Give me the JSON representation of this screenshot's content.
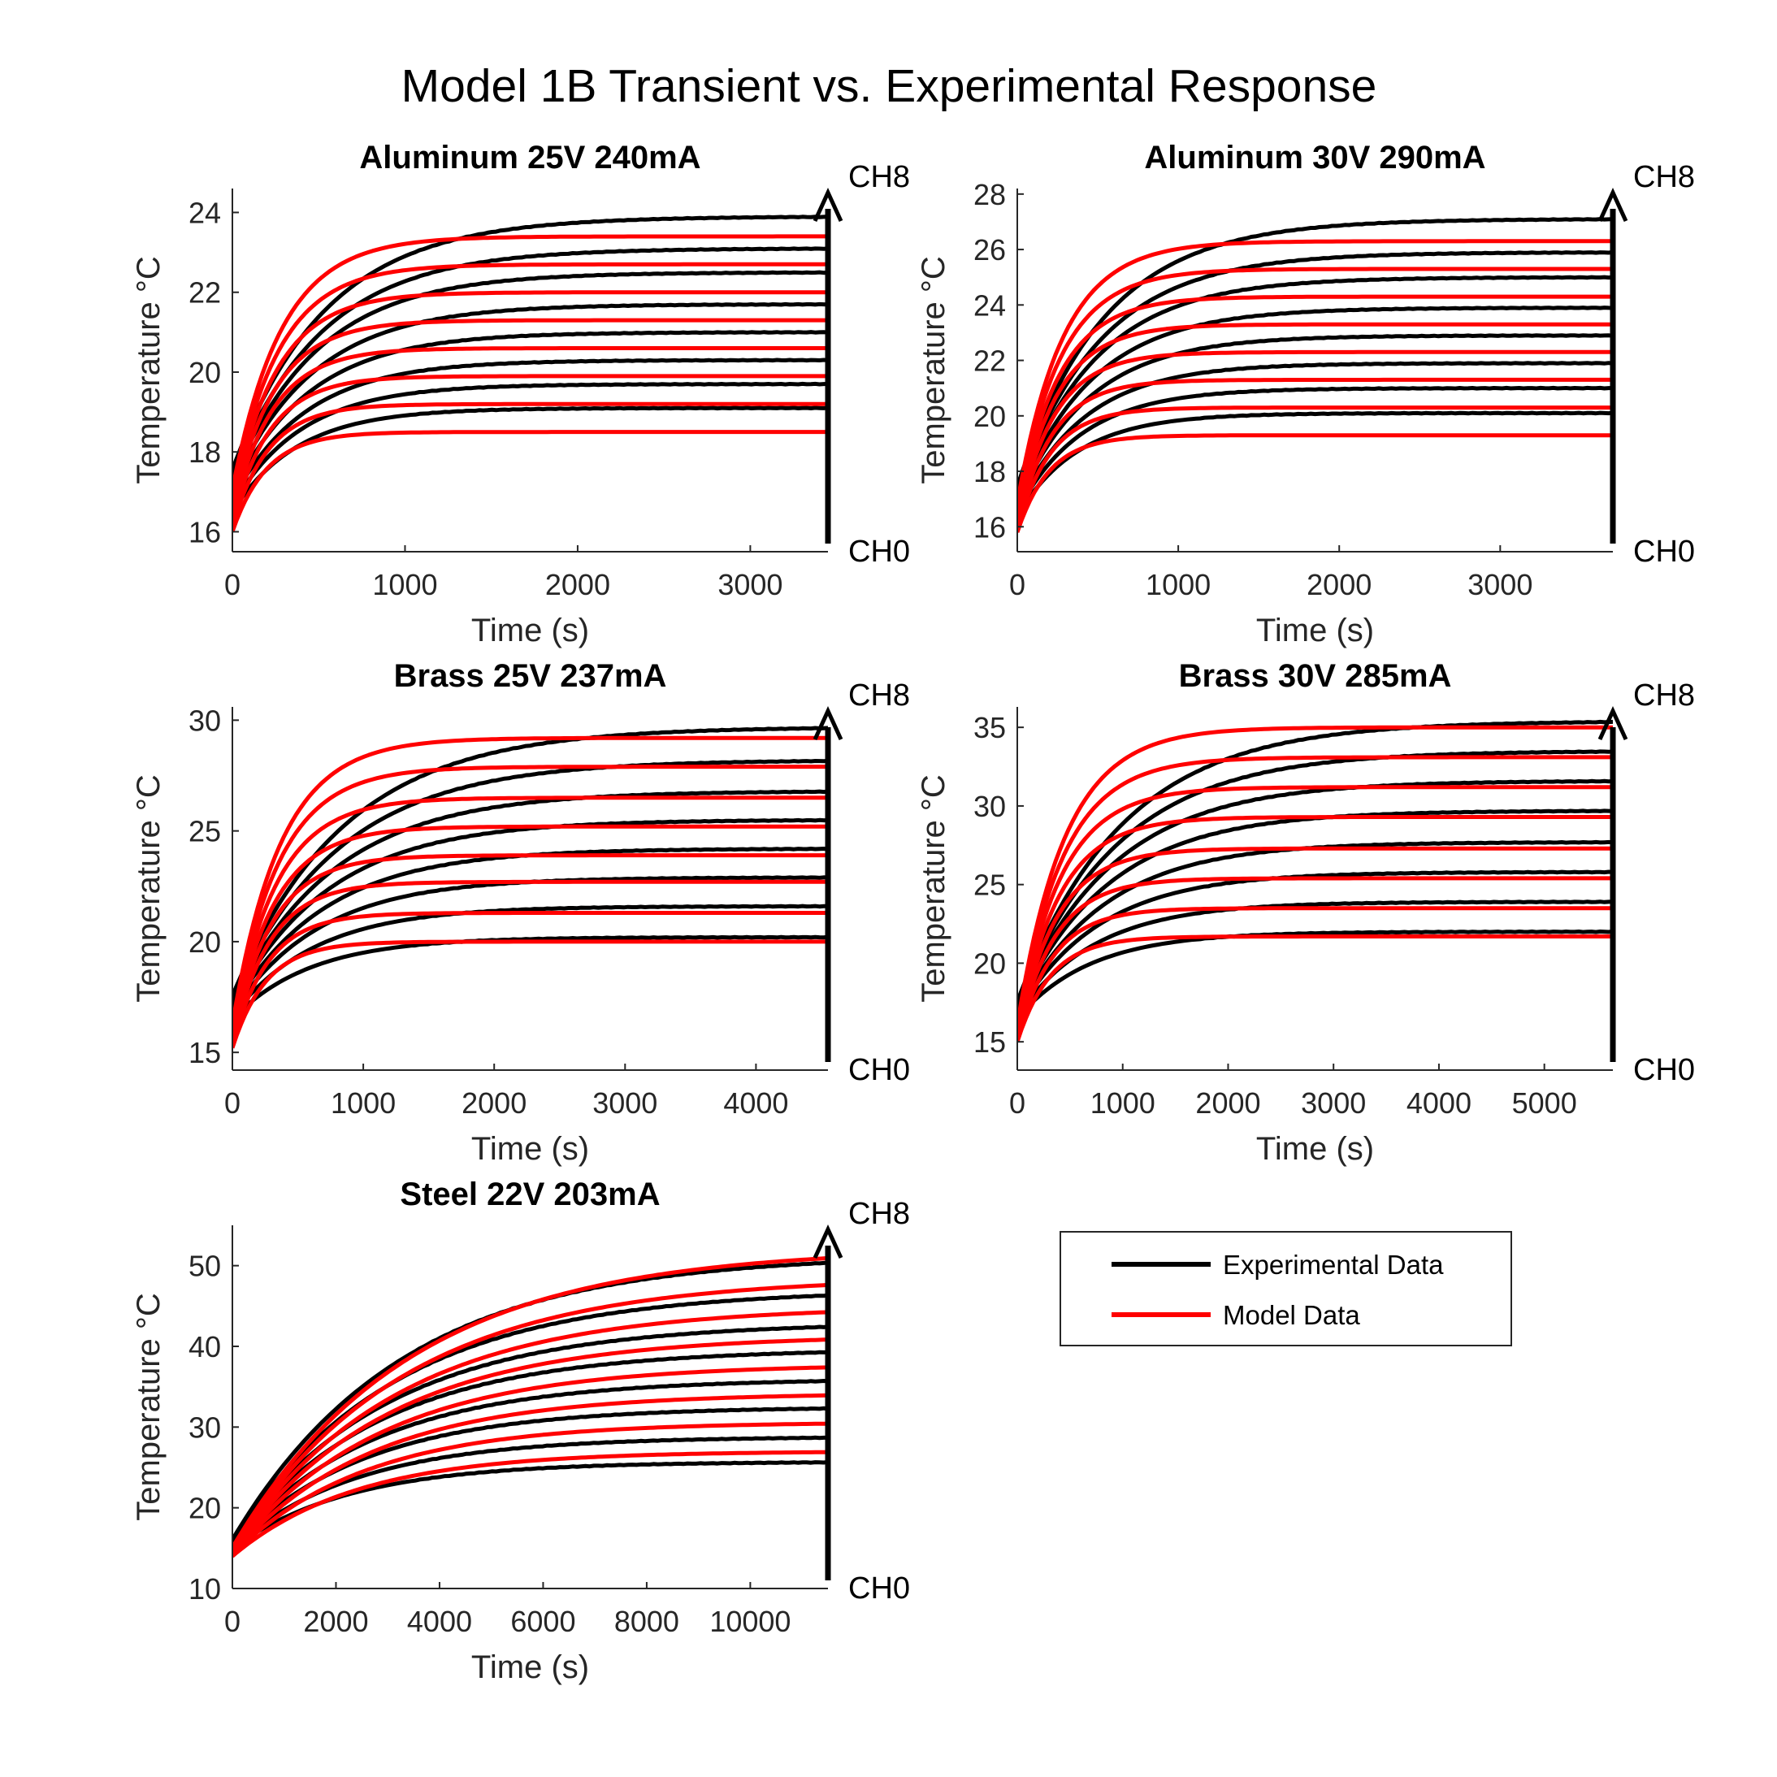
{
  "figure": {
    "title": "Model 1B Transient vs. Experimental Response"
  },
  "legend": {
    "entries": [
      {
        "label": "Experimental Data",
        "color": "#000000"
      },
      {
        "label": "Model Data",
        "color": "#ff0000"
      }
    ]
  },
  "colors": {
    "experimental": "#000000",
    "model": "#ff0000"
  },
  "chart_data": [
    {
      "type": "line",
      "title": "Aluminum 25V 240mA",
      "xlabel": "Time (s)",
      "ylabel": "Temperature °C",
      "xlim": [
        0,
        3450
      ],
      "ylim": [
        15.5,
        24.6
      ],
      "xticks": [
        0,
        1000,
        2000,
        3000
      ],
      "yticks": [
        16,
        18,
        20,
        22,
        24
      ],
      "grid": false,
      "arrow_labels": {
        "top": "CH8",
        "bottom": "CH0"
      },
      "experimental_final": [
        19.1,
        19.7,
        20.3,
        21.0,
        21.7,
        22.5,
        23.1,
        23.9
      ],
      "model_final": [
        18.5,
        19.2,
        19.9,
        20.6,
        21.3,
        22.0,
        22.7,
        23.4
      ],
      "series": [
        {
          "name": "Experimental Data",
          "start": 16.5,
          "steady": [
            19.1,
            19.7,
            20.3,
            21.0,
            21.7,
            22.5,
            23.1,
            23.9
          ],
          "tau": 380
        },
        {
          "name": "Model Data",
          "start": 16.0,
          "steady": [
            18.5,
            19.2,
            19.9,
            20.6,
            21.3,
            22.0,
            22.7,
            23.4
          ],
          "tau": 200
        }
      ]
    },
    {
      "type": "line",
      "title": "Aluminum 30V 290mA",
      "xlabel": "Time (s)",
      "ylabel": "Temperature °C",
      "xlim": [
        0,
        3700
      ],
      "ylim": [
        15.1,
        28.2
      ],
      "xticks": [
        0,
        1000,
        2000,
        3000
      ],
      "yticks": [
        16,
        18,
        20,
        22,
        24,
        26,
        28
      ],
      "grid": false,
      "arrow_labels": {
        "top": "CH8",
        "bottom": "CH0"
      },
      "experimental_final": [
        20.1,
        21.0,
        21.9,
        22.9,
        23.9,
        25.0,
        25.9,
        27.1
      ],
      "model_final": [
        19.3,
        20.3,
        21.3,
        22.3,
        23.3,
        24.3,
        25.3,
        26.3
      ],
      "series": [
        {
          "name": "Experimental Data",
          "start": 16.4,
          "steady": [
            20.1,
            21.0,
            21.9,
            22.9,
            23.9,
            25.0,
            25.9,
            27.1
          ],
          "tau": 380
        },
        {
          "name": "Model Data",
          "start": 15.8,
          "steady": [
            19.3,
            20.3,
            21.3,
            22.3,
            23.3,
            24.3,
            25.3,
            26.3
          ],
          "tau": 200
        }
      ]
    },
    {
      "type": "line",
      "title": "Brass 25V 237mA",
      "xlabel": "Time (s)",
      "ylabel": "Temperature °C",
      "xlim": [
        0,
        4550
      ],
      "ylim": [
        14.2,
        30.6
      ],
      "xticks": [
        0,
        1000,
        2000,
        3000,
        4000
      ],
      "yticks": [
        15,
        20,
        25,
        30
      ],
      "grid": false,
      "arrow_labels": {
        "top": "CH8",
        "bottom": "CH0"
      },
      "experimental_final": [
        20.2,
        21.6,
        22.9,
        24.2,
        25.5,
        26.8,
        28.2,
        29.7
      ],
      "model_final": [
        20.0,
        21.3,
        22.7,
        23.9,
        25.2,
        26.5,
        27.9,
        29.2
      ],
      "series": [
        {
          "name": "Experimental Data",
          "start": 16.5,
          "steady": [
            20.2,
            21.6,
            22.9,
            24.2,
            25.5,
            26.8,
            28.2,
            29.7
          ],
          "tau": 600
        },
        {
          "name": "Model Data",
          "start": 15.2,
          "steady": [
            20.0,
            21.3,
            22.7,
            23.9,
            25.2,
            26.5,
            27.9,
            29.2
          ],
          "tau": 260
        }
      ]
    },
    {
      "type": "line",
      "title": "Brass 30V 285mA",
      "xlabel": "Time (s)",
      "ylabel": "Temperature °C",
      "xlim": [
        0,
        5650
      ],
      "ylim": [
        13.2,
        36.3
      ],
      "xticks": [
        0,
        1000,
        2000,
        3000,
        4000,
        5000
      ],
      "yticks": [
        15,
        20,
        25,
        30,
        35
      ],
      "grid": false,
      "arrow_labels": {
        "top": "CH8",
        "bottom": "CH0"
      },
      "experimental_final": [
        22.0,
        23.9,
        25.8,
        27.7,
        29.7,
        31.6,
        33.5,
        35.4
      ],
      "model_final": [
        21.7,
        23.5,
        25.4,
        27.3,
        29.3,
        31.2,
        33.1,
        35.0
      ],
      "series": [
        {
          "name": "Experimental Data",
          "start": 16.5,
          "steady": [
            22.0,
            23.9,
            25.8,
            27.7,
            29.7,
            31.6,
            33.5,
            35.4
          ],
          "tau": 700
        },
        {
          "name": "Model Data",
          "start": 15.0,
          "steady": [
            21.7,
            23.5,
            25.4,
            27.3,
            29.3,
            31.2,
            33.1,
            35.0
          ],
          "tau": 320
        }
      ]
    },
    {
      "type": "line",
      "title": "Steel 22V 203mA",
      "xlabel": "Time (s)",
      "ylabel": "Temperature °C",
      "xlim": [
        0,
        11500
      ],
      "ylim": [
        10,
        55
      ],
      "xticks": [
        0,
        2000,
        4000,
        6000,
        8000,
        10000
      ],
      "yticks": [
        10,
        20,
        30,
        40,
        50
      ],
      "grid": false,
      "arrow_labels": {
        "top": "CH8",
        "bottom": "CH0"
      },
      "experimental_final": [
        25.7,
        28.8,
        32.5,
        36.0,
        39.7,
        43.0,
        47.1,
        51.4
      ],
      "model_final": [
        27.0,
        30.6,
        34.2,
        37.8,
        41.4,
        45.0,
        48.6,
        52.2
      ],
      "series": [
        {
          "name": "Experimental Data",
          "start": 15.0,
          "steady": [
            25.7,
            28.8,
            32.5,
            36.0,
            39.7,
            43.0,
            47.1,
            51.4
          ],
          "tau": 2300
        },
        {
          "name": "Model Data",
          "start": 14.0,
          "steady": [
            27.0,
            30.6,
            34.2,
            37.8,
            41.4,
            45.0,
            48.6,
            52.2
          ],
          "tau": 2400
        }
      ]
    }
  ]
}
